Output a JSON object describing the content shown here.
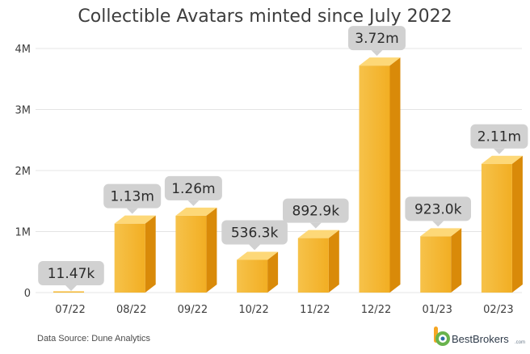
{
  "chart_data": {
    "type": "bar",
    "title": "Collectible Avatars minted since July 2022",
    "categories": [
      "07/22",
      "08/22",
      "09/22",
      "10/22",
      "11/22",
      "12/22",
      "01/23",
      "02/23"
    ],
    "values": [
      11470,
      1130000,
      1260000,
      536300,
      892900,
      3720000,
      923000,
      2110000
    ],
    "value_labels": [
      "11.47k",
      "1.13m",
      "1.26m",
      "536.3k",
      "892.9k",
      "3.72m",
      "923.0k",
      "2.11m"
    ],
    "y_ticks": [
      0,
      1000000,
      2000000,
      3000000,
      4000000
    ],
    "y_tick_labels": [
      "0",
      "1M",
      "2M",
      "3M",
      "4M"
    ],
    "ylim": [
      0,
      4000000
    ],
    "grid": true,
    "legend": "none"
  },
  "source_text": "Data Source: Dune Analytics",
  "brand": {
    "name": "BestBrokers",
    "suffix": ".com"
  },
  "colors": {
    "bar_front": "#f4b731",
    "bar_side": "#d98a09",
    "bar_top": "#fdd878",
    "label_box": "#d1d1d1",
    "grid": "#e4e4e4",
    "brand_orange": "#f5a623",
    "brand_green": "#69b34c",
    "brand_blue": "#2f6fa3"
  }
}
